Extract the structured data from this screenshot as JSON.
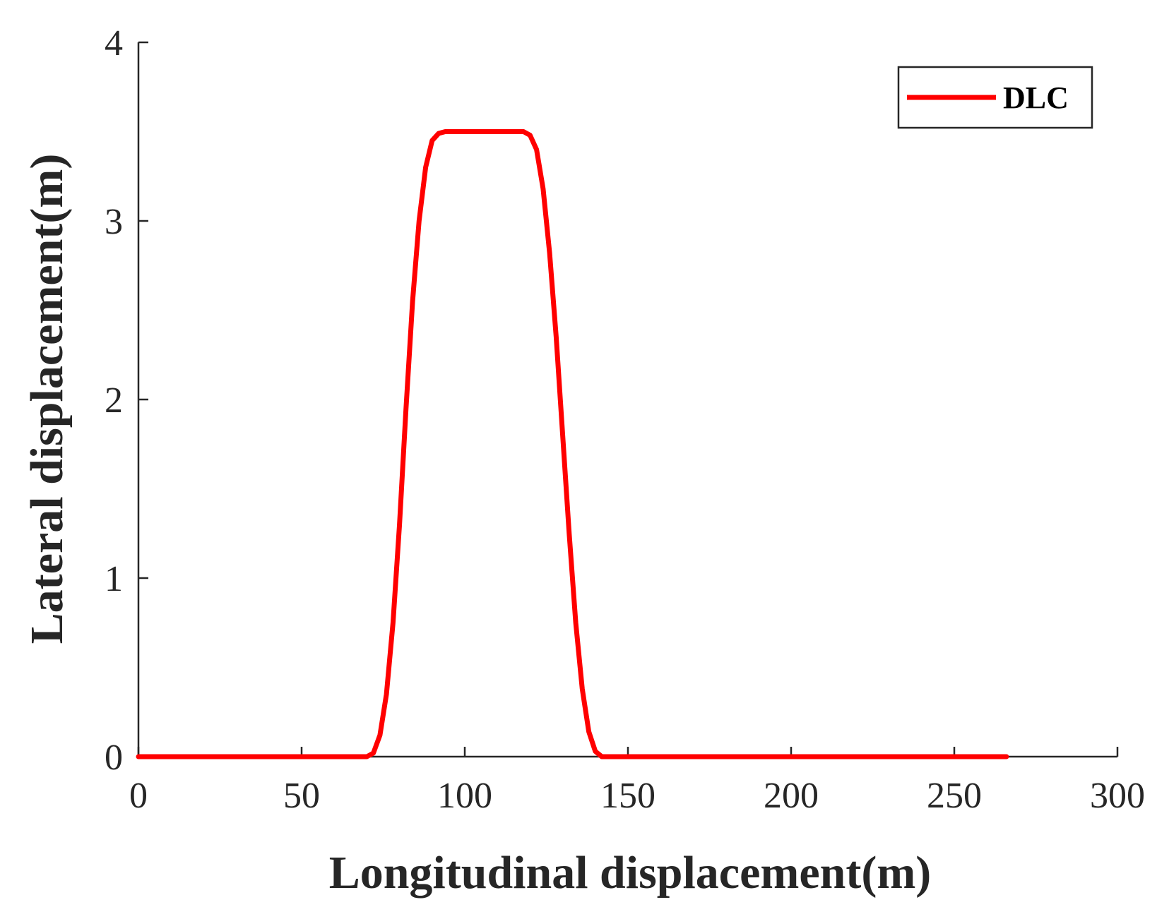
{
  "chart_data": {
    "type": "line",
    "title": "",
    "xlabel": "Longitudinal displacement(m)",
    "ylabel": "Lateral displacement(m)",
    "xlim": [
      0,
      300
    ],
    "ylim": [
      0,
      4
    ],
    "xticks": [
      0,
      50,
      100,
      150,
      200,
      250,
      300
    ],
    "yticks": [
      0,
      1,
      2,
      3,
      4
    ],
    "xtick_labels": [
      "0",
      "50",
      "100",
      "150",
      "200",
      "250",
      "300"
    ],
    "ytick_labels": [
      "0",
      "1",
      "2",
      "3",
      "4"
    ],
    "grid": false,
    "legend_position": "top-right",
    "series": [
      {
        "name": "DLC",
        "color": "#ff0000",
        "x": [
          0,
          70,
          72,
          74,
          76,
          78,
          80,
          82,
          84,
          86,
          88,
          90,
          92,
          94,
          96,
          98,
          100,
          110,
          118,
          120,
          122,
          124,
          126,
          128,
          130,
          132,
          134,
          136,
          138,
          140,
          142,
          144,
          150,
          200,
          250,
          266
        ],
        "y": [
          0,
          0,
          0.02,
          0.12,
          0.35,
          0.75,
          1.3,
          1.95,
          2.55,
          3.0,
          3.3,
          3.45,
          3.49,
          3.5,
          3.5,
          3.5,
          3.5,
          3.5,
          3.5,
          3.48,
          3.4,
          3.18,
          2.82,
          2.35,
          1.8,
          1.25,
          0.75,
          0.38,
          0.14,
          0.03,
          0.0,
          0,
          0,
          0,
          0,
          0
        ]
      }
    ]
  }
}
